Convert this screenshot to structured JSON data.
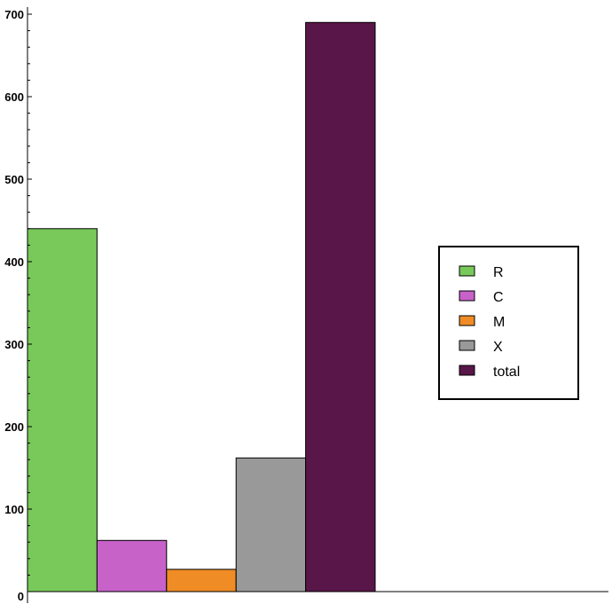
{
  "chart_data": {
    "type": "bar",
    "categories": [
      "R",
      "C",
      "M",
      "X",
      "total"
    ],
    "values": [
      440,
      62,
      27,
      162,
      690
    ],
    "colors": [
      "#78c95a",
      "#c762c9",
      "#ef8c25",
      "#999999",
      "#591648"
    ],
    "ylim": [
      0,
      705
    ],
    "yticks": [
      0,
      100,
      200,
      300,
      400,
      500,
      600,
      700
    ],
    "ytick_labels": [
      "0",
      "100",
      "200",
      "300",
      "400",
      "500",
      "600",
      "700"
    ],
    "legend": {
      "position": "right",
      "entries": [
        "R",
        "C",
        "M",
        "X",
        "total"
      ]
    },
    "grid": false
  }
}
